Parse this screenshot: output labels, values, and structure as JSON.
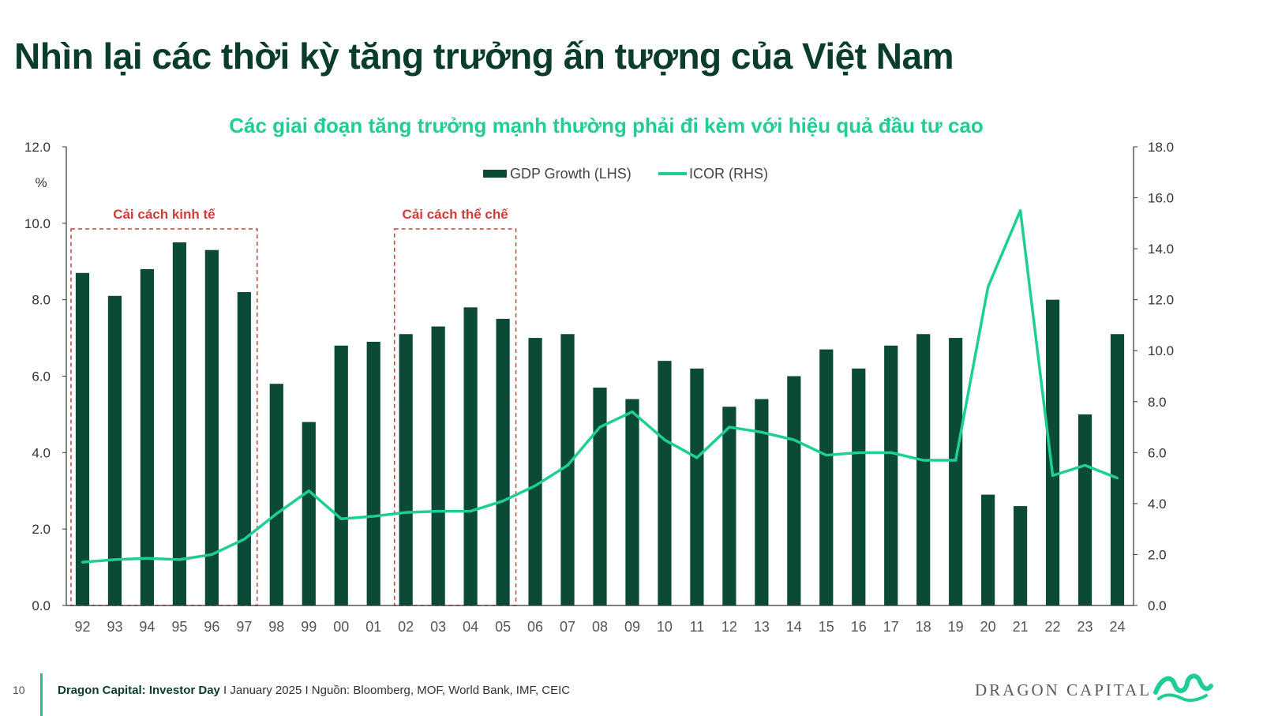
{
  "page": {
    "title": "Nhìn lại các thời kỳ tăng trưởng ấn tượng của Việt Nam",
    "page_number": "10",
    "footer_org": "Dragon Capital: Investor Day",
    "footer_rest": " I January 2025 I Nguồn: Bloomberg, MOF, World Bank, IMF, CEIC",
    "brand": "DRAGON CAPITAL",
    "logo_icon": "dragon-icon",
    "colors": {
      "title": "#0b3d2e",
      "bar": "#0b4a36",
      "line": "#1fce96",
      "annotation": "#d23a3a"
    }
  },
  "chart_data": {
    "type": "bar",
    "title": "Các giai đoạn tăng trưởng mạnh thường phải đi kèm với hiệu quả đầu tư cao",
    "left_unit": "%",
    "categories": [
      "92",
      "93",
      "94",
      "95",
      "96",
      "97",
      "98",
      "99",
      "00",
      "01",
      "02",
      "03",
      "04",
      "05",
      "06",
      "07",
      "08",
      "09",
      "10",
      "11",
      "12",
      "13",
      "14",
      "15",
      "16",
      "17",
      "18",
      "19",
      "20",
      "21",
      "22",
      "23",
      "24"
    ],
    "series": [
      {
        "name": "GDP Growth (LHS)",
        "type": "bar",
        "axis": "left",
        "values": [
          8.7,
          8.1,
          8.8,
          9.5,
          9.3,
          8.2,
          5.8,
          4.8,
          6.8,
          6.9,
          7.1,
          7.3,
          7.8,
          7.5,
          7.0,
          7.1,
          5.7,
          5.4,
          6.4,
          6.2,
          5.2,
          5.4,
          6.0,
          6.7,
          6.2,
          6.8,
          7.1,
          7.0,
          2.9,
          2.6,
          8.0,
          5.0,
          7.1
        ]
      },
      {
        "name": "ICOR (RHS)",
        "type": "line",
        "axis": "right",
        "values": [
          1.7,
          1.8,
          1.85,
          1.8,
          2.0,
          2.6,
          3.6,
          4.5,
          3.4,
          3.5,
          3.65,
          3.7,
          3.7,
          4.1,
          4.7,
          5.5,
          7.0,
          7.6,
          6.5,
          5.8,
          7.0,
          6.8,
          6.5,
          5.9,
          6.0,
          6.0,
          5.7,
          5.7,
          12.5,
          15.5,
          5.1,
          5.5,
          5.0
        ]
      }
    ],
    "left_axis": {
      "ylim": [
        0,
        12
      ],
      "ticks": [
        "0.0",
        "2.0",
        "4.0",
        "6.0",
        "8.0",
        "10.0",
        "12.0"
      ]
    },
    "right_axis": {
      "ylim": [
        0,
        18
      ],
      "ticks": [
        "0.0",
        "2.0",
        "4.0",
        "6.0",
        "8.0",
        "10.0",
        "12.0",
        "14.0",
        "16.0",
        "18.0"
      ]
    },
    "legend_position": "top-center",
    "annotations": [
      {
        "label": "Cải cách kinh tế",
        "from": "92",
        "to": "97"
      },
      {
        "label": "Cải cách thể chế",
        "from": "02",
        "to": "05"
      }
    ]
  }
}
